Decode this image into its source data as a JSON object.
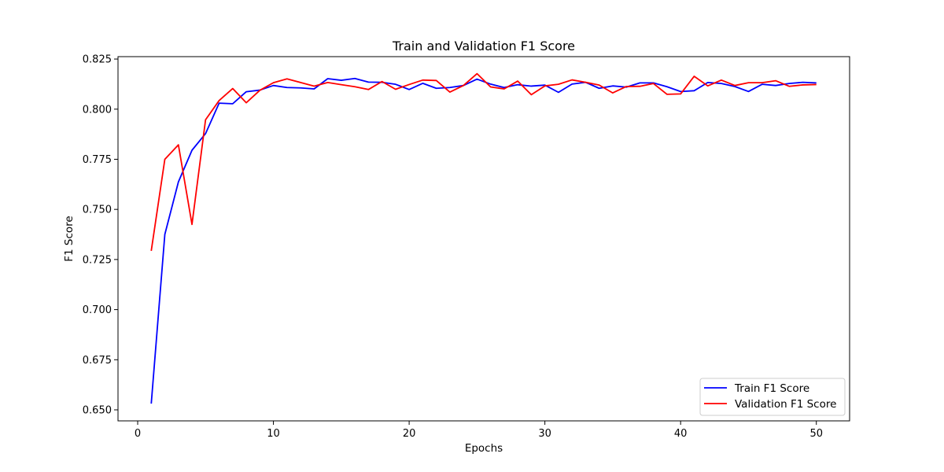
{
  "chart_data": {
    "type": "line",
    "title": "Train and Validation F1 Score",
    "xlabel": "Epochs",
    "ylabel": "F1 Score",
    "xlim": [
      -1.45,
      52.45
    ],
    "ylim": [
      0.6445,
      0.8262
    ],
    "xticks": [
      0,
      10,
      20,
      30,
      40,
      50
    ],
    "xtick_labels": [
      "0",
      "10",
      "20",
      "30",
      "40",
      "50"
    ],
    "yticks": [
      0.65,
      0.675,
      0.7,
      0.725,
      0.75,
      0.775,
      0.8,
      0.825
    ],
    "ytick_labels": [
      "0.650",
      "0.675",
      "0.700",
      "0.725",
      "0.750",
      "0.775",
      "0.800",
      "0.825"
    ],
    "grid": false,
    "legend_position": "lower-right",
    "x": [
      1,
      2,
      3,
      4,
      5,
      6,
      7,
      8,
      9,
      10,
      11,
      12,
      13,
      14,
      15,
      16,
      17,
      18,
      19,
      20,
      21,
      22,
      23,
      24,
      25,
      26,
      27,
      28,
      29,
      30,
      31,
      32,
      33,
      34,
      35,
      36,
      37,
      38,
      39,
      40,
      41,
      42,
      43,
      44,
      45,
      46,
      47,
      48,
      49,
      50
    ],
    "series": [
      {
        "name": "Train F1 Score",
        "color": "#0000ff",
        "values": [
          0.6531,
          0.7375,
          0.7637,
          0.7795,
          0.7878,
          0.803,
          0.8027,
          0.8087,
          0.8095,
          0.8118,
          0.8108,
          0.8106,
          0.8101,
          0.8152,
          0.8144,
          0.8153,
          0.8135,
          0.8134,
          0.8124,
          0.8098,
          0.8129,
          0.8104,
          0.8108,
          0.8118,
          0.815,
          0.8125,
          0.8108,
          0.8122,
          0.8115,
          0.812,
          0.8084,
          0.8125,
          0.8134,
          0.8104,
          0.8116,
          0.811,
          0.8131,
          0.8131,
          0.8112,
          0.8088,
          0.8092,
          0.8133,
          0.8128,
          0.8113,
          0.8088,
          0.8124,
          0.8118,
          0.8128,
          0.8134,
          0.8131
        ]
      },
      {
        "name": "Validation F1 Score",
        "color": "#ff0000",
        "values": [
          0.7293,
          0.775,
          0.7822,
          0.7425,
          0.7947,
          0.8043,
          0.8103,
          0.8032,
          0.8094,
          0.8132,
          0.8151,
          0.8133,
          0.8115,
          0.8133,
          0.8122,
          0.8112,
          0.8098,
          0.8138,
          0.8099,
          0.8123,
          0.8145,
          0.8143,
          0.8085,
          0.8118,
          0.8177,
          0.8111,
          0.8101,
          0.814,
          0.8072,
          0.8116,
          0.8124,
          0.8146,
          0.8134,
          0.812,
          0.8081,
          0.8113,
          0.8114,
          0.8128,
          0.8074,
          0.8076,
          0.8164,
          0.8116,
          0.8145,
          0.8118,
          0.8132,
          0.8132,
          0.8142,
          0.8114,
          0.8121,
          0.8123
        ]
      }
    ]
  }
}
